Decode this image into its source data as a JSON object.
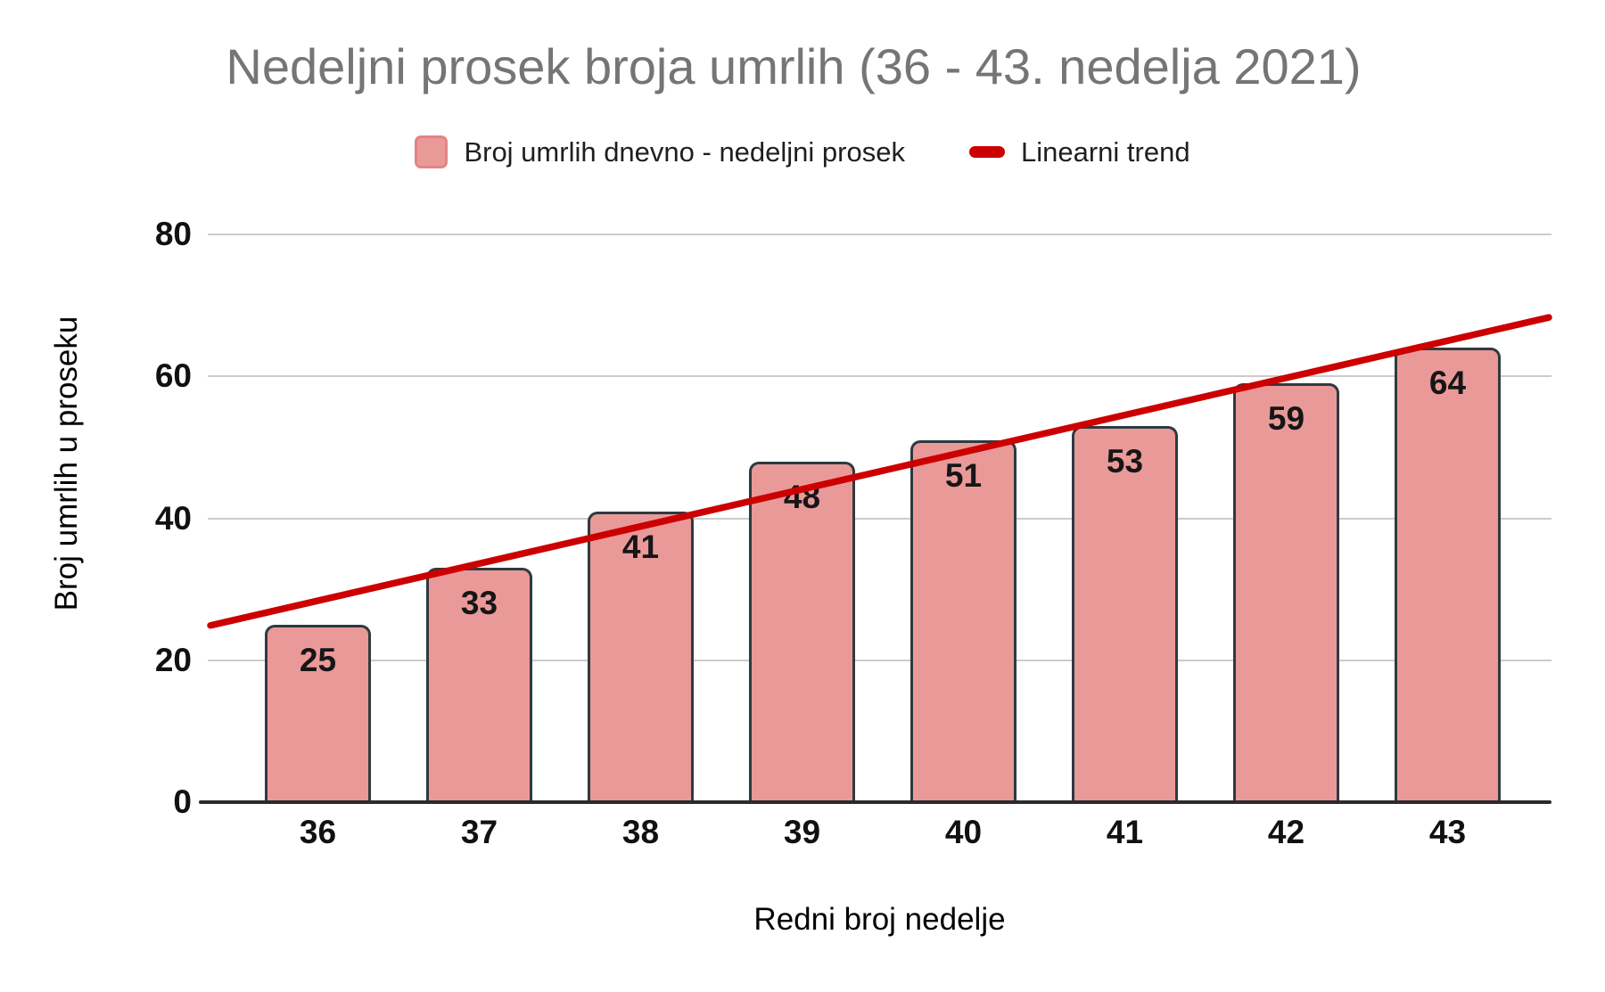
{
  "title": "Nedeljni prosek broja umrlih (36 - 43. nedelja 2021)",
  "legend": [
    {
      "label": "Broj umrlih dnevno - nedeljni prosek",
      "swatch": "bar-swatch",
      "color": "#ea9999"
    },
    {
      "label": "Linearni trend",
      "swatch": "line-swatch",
      "color": "#cc0000"
    }
  ],
  "axes": {
    "y_title": "Broj umrlih u proseku",
    "x_title": "Redni broj nedelje"
  },
  "chart_data": {
    "type": "bar",
    "title": "Nedeljni prosek broja umrlih (36 - 43. nedelja 2021)",
    "categories": [
      "36",
      "37",
      "38",
      "39",
      "40",
      "41",
      "42",
      "43"
    ],
    "series": [
      {
        "name": "Broj umrlih dnevno - nedeljni prosek",
        "values": [
          25,
          33,
          41,
          48,
          51,
          53,
          59,
          64
        ]
      }
    ],
    "trendline": {
      "name": "Linearni trend",
      "start_value": 24.9,
      "end_value": 68.3,
      "color": "#cc0000"
    },
    "xlabel": "Redni broj nedelje",
    "ylabel": "Broj umrlih u proseku",
    "ylim": [
      0,
      80
    ],
    "yticks": [
      0,
      20,
      40,
      60,
      80
    ],
    "grid": true,
    "legend_position": "top",
    "bar_color": "#ea9999",
    "bar_border_color": "#2e3a40",
    "gridline_color": "#cccccc",
    "title_color": "#757575"
  }
}
